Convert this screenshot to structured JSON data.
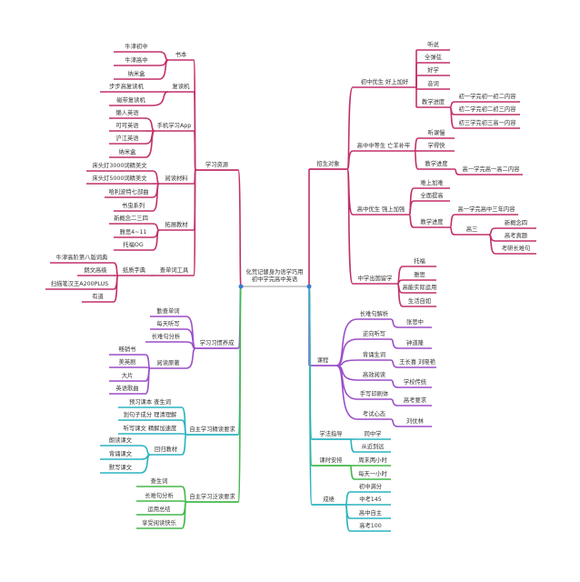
{
  "colors": {
    "magenta": "#c2306a",
    "purple": "#9b4fc8",
    "teal": "#2bb3c0",
    "green": "#44b84a",
    "root": "#3a7bd5"
  },
  "center": {
    "line1": "化荒记健身为语学巧用",
    "line2": "初中学完高中英语"
  },
  "branches": [
    {
      "label": "学习资源",
      "color": "magenta",
      "side": "left",
      "children": [
        {
          "label": "书本",
          "children": [
            {
              "label": "牛津初中"
            },
            {
              "label": "牛津高中"
            },
            {
              "label": "纳米盒"
            }
          ]
        },
        {
          "label": "复读机",
          "children": [
            {
              "label": "步步高复读机"
            },
            {
              "label": "磁带复读机"
            }
          ]
        },
        {
          "label": "手机学习App",
          "children": [
            {
              "label": "懒人英语"
            },
            {
              "label": "可可英语"
            },
            {
              "label": "沪江英语"
            },
            {
              "label": "纳米盒"
            }
          ]
        },
        {
          "label": "阅读材料",
          "children": [
            {
              "label": "床头灯3000词精美文"
            },
            {
              "label": "床头灯5000词精美文"
            },
            {
              "label": "哈利波特七部曲"
            },
            {
              "label": "书虫系列"
            }
          ]
        },
        {
          "label": "拓展教材",
          "children": [
            {
              "label": "新概念二三四"
            },
            {
              "label": "雅思4~11"
            },
            {
              "label": "托福OG"
            }
          ]
        },
        {
          "label": "查单词工具",
          "children": [
            {
              "label": "纸质字典",
              "children": [
                {
                  "label": "牛津高阶第八版词典"
                },
                {
                  "label": "朗文高级"
                },
                {
                  "label": "扫描笔汉王A200PLUS"
                },
                {
                  "label": "有道"
                }
              ]
            }
          ]
        }
      ]
    },
    {
      "label": "学习习惯养成",
      "color": "purple",
      "side": "left",
      "children": [
        {
          "label": "勤查单词"
        },
        {
          "label": "每天听写"
        },
        {
          "label": "长难句分析"
        },
        {
          "label": "阅读原著",
          "children": [
            {
              "label": "畅销书"
            },
            {
              "label": "美英剧"
            },
            {
              "label": "大片"
            },
            {
              "label": "英语歌曲"
            }
          ]
        }
      ]
    },
    {
      "label": "自主学习精读要求",
      "color": "teal",
      "side": "left",
      "children": [
        {
          "label": "预习课本 查生词"
        },
        {
          "label": "划句子成分 理清理解"
        },
        {
          "label": "听写课文 精解加速度"
        },
        {
          "label": "回归教材",
          "children": [
            {
              "label": "朗读课文"
            },
            {
              "label": "背诵课文"
            },
            {
              "label": "默写课文"
            }
          ]
        }
      ]
    },
    {
      "label": "自主学习泛读要求",
      "color": "green",
      "side": "left",
      "children": [
        {
          "label": "查生词"
        },
        {
          "label": "长难句分析"
        },
        {
          "label": "运用总结"
        },
        {
          "label": "享受阅读快乐"
        }
      ]
    },
    {
      "label": "招生对象",
      "color": "magenta",
      "side": "right",
      "children": [
        {
          "label": "初中优生 好上加好",
          "children": [
            {
              "label": "听说"
            },
            {
              "label": "全弹弦"
            },
            {
              "label": "好学"
            },
            {
              "label": "音词"
            },
            {
              "label": "教学进度",
              "children": [
                {
                  "label": "初一学完初一初二内容"
                },
                {
                  "label": "初二学完初二初三内容"
                },
                {
                  "label": "初三学完初三高一内容"
                }
              ]
            }
          ]
        },
        {
          "label": "高中中等生 亡羊补牢",
          "children": [
            {
              "label": "听课慢"
            },
            {
              "label": "学得快"
            },
            {
              "label": "教学进度",
              "children": [
                {
                  "label": "高一学完高一高二内容"
                }
              ]
            }
          ]
        },
        {
          "label": "高中优生 强上加强",
          "children": [
            {
              "label": "难上加难"
            },
            {
              "label": "全面提高"
            },
            {
              "label": "教学进度",
              "children": [
                {
                  "label": "高一学完高中三年内容"
                },
                {
                  "label": "高三",
                  "children": [
                    {
                      "label": "新概念四"
                    },
                    {
                      "label": "高考真题"
                    },
                    {
                      "label": "考研长难句"
                    }
                  ]
                }
              ]
            }
          ]
        },
        {
          "label": "中学出国留学",
          "children": [
            {
              "label": "托福"
            },
            {
              "label": "雅思"
            },
            {
              "label": "高能实际运用"
            },
            {
              "label": "生活自如"
            }
          ]
        }
      ]
    },
    {
      "label": "课程",
      "color": "purple",
      "side": "right",
      "children": [
        {
          "label": "长难句解析",
          "children": [
            {
              "label": "张思中"
            }
          ]
        },
        {
          "label": "逆向听写",
          "children": [
            {
              "label": "钟道隆"
            }
          ]
        },
        {
          "label": "背诵生词",
          "children": [
            {
              "label": "王长喜 刘晓艳"
            }
          ]
        },
        {
          "label": "高效阅读",
          "children": [
            {
              "label": "学校传统"
            }
          ]
        },
        {
          "label": "手写印刷体",
          "children": [
            {
              "label": "高考要求"
            }
          ]
        },
        {
          "label": "考试心态",
          "children": [
            {
              "label": "刘仗林"
            }
          ]
        }
      ]
    },
    {
      "label": "学法指导",
      "color": "teal",
      "side": "right",
      "children": [
        {
          "label": "同中学"
        },
        {
          "label": "从近到远"
        }
      ]
    },
    {
      "label": "课时安排",
      "color": "green",
      "side": "right",
      "children": [
        {
          "label": "周末两小时"
        },
        {
          "label": "每天一小时"
        }
      ]
    },
    {
      "label": "成绩",
      "color": "teal",
      "side": "right",
      "children": [
        {
          "label": "初中满分"
        },
        {
          "label": "中考145"
        },
        {
          "label": "高中自主"
        },
        {
          "label": "高考100"
        }
      ]
    }
  ]
}
